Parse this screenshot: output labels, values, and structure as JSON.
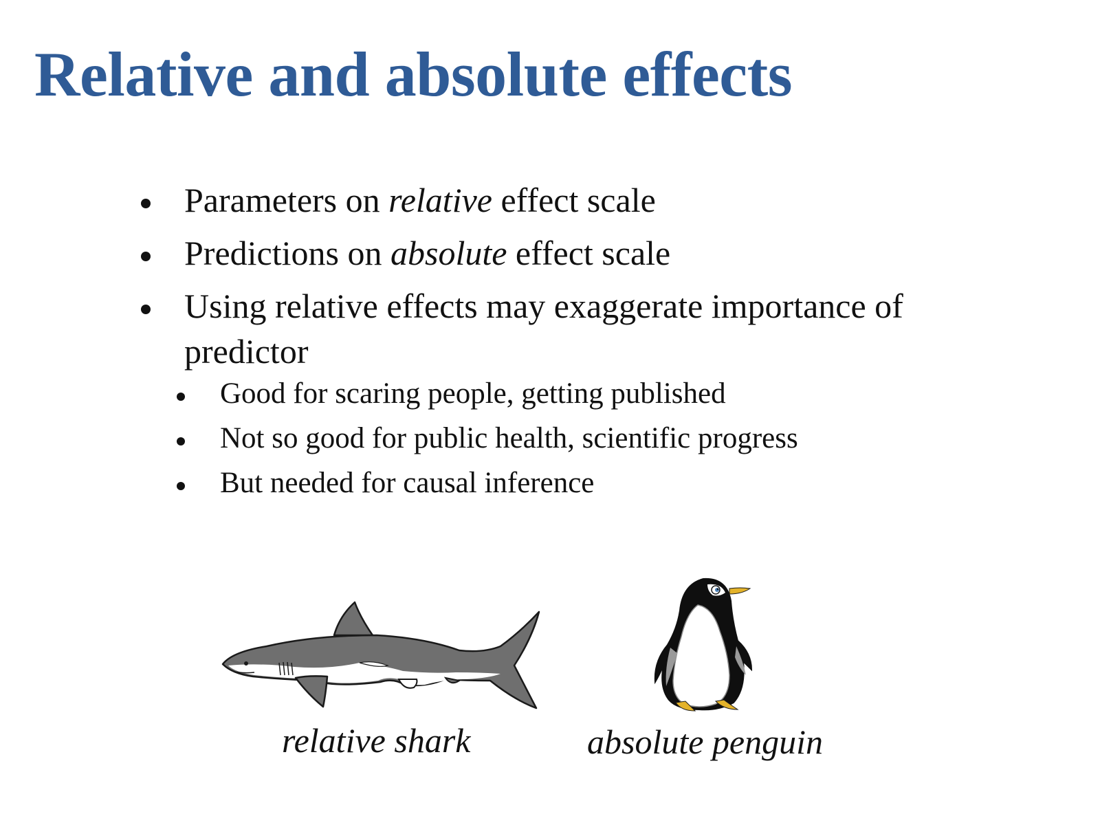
{
  "slide": {
    "title": "Relative and absolute effects"
  },
  "bullets": [
    {
      "before": "Parameters on ",
      "emphasis": "relative",
      "after": " effect scale"
    },
    {
      "before": "Predictions on ",
      "emphasis": "absolute",
      "after": " effect scale"
    },
    {
      "text": "Using relative effects may exaggerate importance of predictor"
    }
  ],
  "subbullets": [
    "Good for scaring people, getting published",
    "Not so good for public health, scientific progress",
    "But needed for causal inference"
  ],
  "figures": {
    "shark": {
      "icon": "shark-illustration",
      "caption": "relative shark",
      "body_color": "#6f6f6f",
      "belly_color": "#ffffff"
    },
    "penguin": {
      "icon": "penguin-illustration",
      "caption": "absolute penguin",
      "body_color": "#0f0f0f",
      "belly_color": "#ffffff",
      "beak_color": "#e4b32a"
    }
  },
  "colors": {
    "title": "#2f5b96",
    "text": "#111111",
    "background": "#ffffff"
  }
}
